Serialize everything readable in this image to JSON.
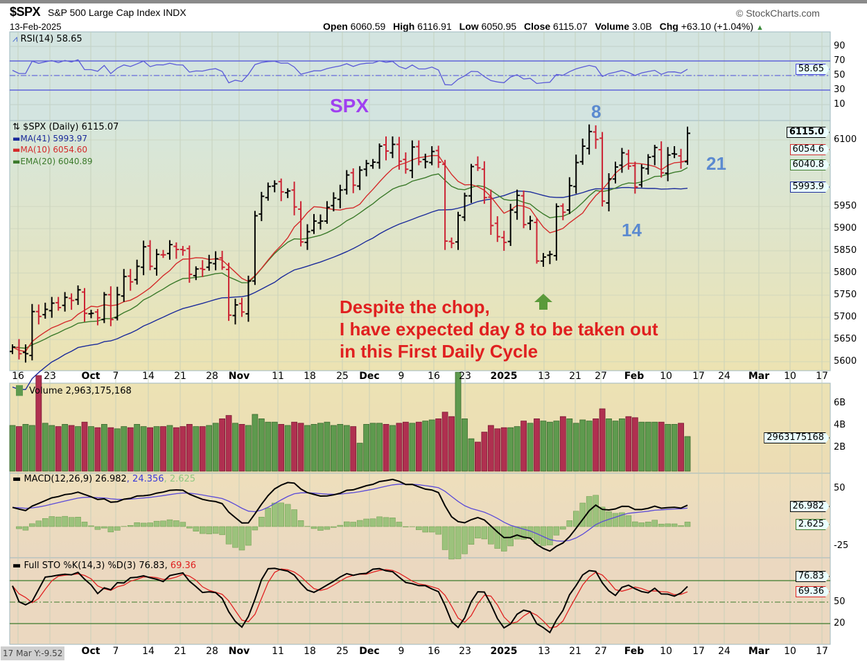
{
  "header": {
    "symbol": "$SPX",
    "name": "S&P 500 Large Cap Index  INDX",
    "date": "13-Feb-2025",
    "brand": "© StockCharts.com",
    "open_label": "Open",
    "open": "6060.59",
    "high_label": "High",
    "high": "6116.91",
    "low_label": "Low",
    "low": "6050.95",
    "close_label": "Close",
    "close": "6115.07",
    "volume_label": "Volume",
    "volume": "3.0B",
    "chg_label": "Chg",
    "chg": "+63.10 (+1.04%)",
    "chg_arrow": "▲"
  },
  "rsi": {
    "legend": "RSI(14) 58.65",
    "tag": "58.65",
    "ticks": [
      "90",
      "70",
      "50",
      "30",
      "10"
    ]
  },
  "price": {
    "legend": "$SPX (Daily) 6115.07",
    "ma41": "MA(41) 5993.97",
    "ma10": "MA(10) 6054.60",
    "ema20": "EMA(20) 6040.89",
    "tags": {
      "close": "6115.0",
      "ma10": "6054.6",
      "ema20": "6040.8",
      "ma41": "5993.9"
    },
    "ticks": [
      "6100",
      "5950",
      "5900",
      "5850",
      "5800",
      "5750",
      "5700",
      "5650",
      "5600"
    ]
  },
  "annotations": {
    "spx": "SPX",
    "day8": "8",
    "day14": "14",
    "day21": "21",
    "note_line1": "Despite the chop,",
    "note_line2": "I have expected day 8 to be taken out",
    "note_line3": "in this First Daily Cycle"
  },
  "volume": {
    "legend": "Volume 2,963,175,168",
    "tag": "2963175168",
    "ticks": [
      "6B",
      "4B",
      "2B"
    ]
  },
  "macd": {
    "legend_main": "MACD(12,26,9) 26.982",
    "legend_signal": ", 24.356",
    "legend_hist": ", 2.625",
    "tag_macd": "26.982",
    "tag_hist": "2.625",
    "ticks": [
      "50",
      "-25"
    ]
  },
  "sto": {
    "legend_main": "Full STO %K(14,3) %D(3) 76.83,",
    "legend_d": "69.36",
    "tag_k": "76.83",
    "tag_d": "69.36",
    "ticks": [
      "50",
      "20"
    ]
  },
  "cursor_readout": "17 Mar Y:-9.52",
  "date_ticks": [
    "16",
    "23",
    "Oct",
    "7",
    "14",
    "21",
    "28",
    "Nov",
    "11",
    "18",
    "25",
    "Dec",
    "9",
    "16",
    "23",
    "2025",
    "13",
    "21",
    "27",
    "Feb",
    "10",
    "17",
    "24",
    "Mar",
    "10",
    "17"
  ],
  "bottom_date_ticks": [
    "Oct",
    "7",
    "14",
    "21",
    "28",
    "Nov",
    "11",
    "18",
    "25",
    "Dec",
    "9",
    "16",
    "23",
    "2025",
    "13",
    "21",
    "27",
    "Feb",
    "10",
    "17",
    "24",
    "Mar",
    "10",
    "17"
  ],
  "colors": {
    "up": "#000000",
    "down": "#cc2233",
    "ma41": "#1a2a9a",
    "ma10": "#d42a2a",
    "ema20": "#3b7a2a",
    "rsi": "#5a5ad8",
    "vol_up": "#5e9a4e",
    "vol_down": "#b03050",
    "annotation_blue": "#5b8ad0",
    "annotation_purple": "#a040f0",
    "annotation_red": "#e02020",
    "arrow_green": "#5a9a3a"
  },
  "chart_data": {
    "type": "ohlc",
    "title": "$SPX S&P 500 Large Cap Index (Daily)",
    "period": "16-Sep-2024 to 13-Feb-2025",
    "ylim": [
      5580,
      6140
    ],
    "close": [
      5633,
      5618,
      5618,
      5713,
      5702,
      5718,
      5732,
      5722,
      5745,
      5738,
      5762,
      5709,
      5709,
      5699,
      5751,
      5695,
      5751,
      5792,
      5780,
      5815,
      5859,
      5815,
      5842,
      5841,
      5864,
      5853,
      5851,
      5797,
      5809,
      5808,
      5823,
      5832,
      5813,
      5705,
      5728,
      5712,
      5782,
      5929,
      5973,
      5995,
      6001,
      5983,
      5985,
      5949,
      5870,
      5893,
      5917,
      5917,
      5948,
      5969,
      5987,
      6021,
      5998,
      6032,
      6047,
      6050,
      6086,
      6075,
      6090,
      6052,
      6034,
      6084,
      6051,
      6051,
      6074,
      6050,
      5872,
      5867,
      5930,
      5974,
      6040,
      6037,
      5970,
      5907,
      5882,
      5869,
      5942,
      5975,
      5909,
      5918,
      5827,
      5836,
      5842,
      5950,
      5937,
      5997,
      6049,
      6086,
      6119,
      6101,
      5962,
      6012,
      6039,
      6071,
      6041,
      5994,
      6037,
      6061,
      6083,
      6026,
      6066,
      6068,
      6051,
      6115
    ],
    "volume_billions": [
      4.0,
      3.9,
      4.1,
      4.0,
      8.5,
      4.2,
      4.0,
      3.9,
      4.1,
      4.0,
      3.9,
      4.3,
      3.9,
      3.8,
      4.1,
      3.8,
      3.7,
      3.9,
      3.8,
      4.1,
      3.9,
      3.8,
      3.9,
      3.9,
      4.0,
      3.8,
      3.9,
      4.1,
      3.9,
      3.9,
      4.0,
      4.2,
      4.6,
      4.9,
      4.2,
      4.1,
      4.0,
      5.0,
      4.6,
      4.3,
      4.3,
      4.1,
      4.0,
      4.3,
      4.2,
      4.0,
      4.1,
      4.2,
      4.3,
      4.0,
      4.1,
      4.0,
      3.9,
      2.4,
      4.1,
      4.2,
      4.2,
      4.1,
      4.0,
      4.2,
      4.3,
      4.2,
      4.3,
      4.4,
      4.5,
      4.6,
      5.2,
      4.8,
      8.8,
      4.6,
      2.8,
      2.5,
      3.4,
      4.0,
      3.7,
      3.8,
      3.8,
      3.9,
      4.4,
      4.2,
      4.6,
      4.4,
      4.3,
      4.4,
      4.8,
      4.6,
      4.2,
      4.5,
      4.4,
      4.6,
      5.5,
      4.6,
      4.4,
      4.6,
      4.8,
      4.7,
      4.3,
      4.3,
      4.3,
      4.3,
      4.1,
      4.1,
      4.2,
      3.0
    ],
    "indicators": [
      "RSI(14)",
      "MA(41)",
      "MA(10)",
      "EMA(20)",
      "MACD(12,26,9)",
      "Full STO %K(14,3) %D(3)"
    ],
    "rsi_levels": [
      70,
      50,
      30
    ],
    "sto_levels": [
      80,
      50,
      20
    ]
  }
}
